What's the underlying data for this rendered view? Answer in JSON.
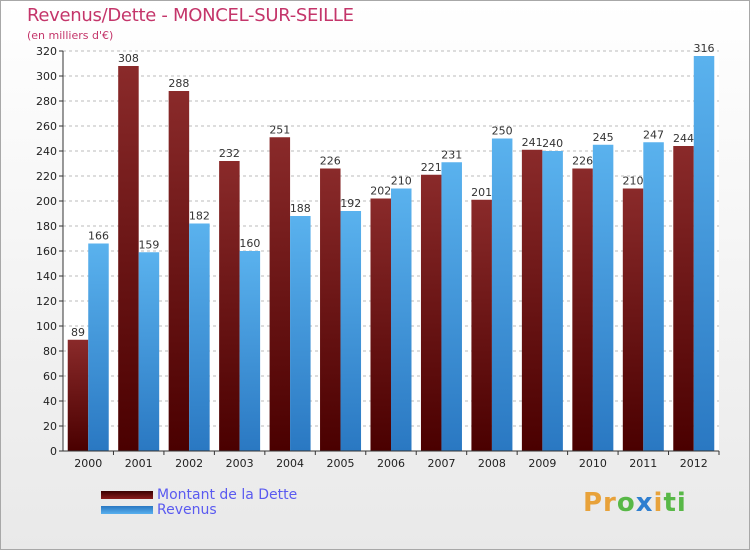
{
  "colors": {
    "title": "#c4356a",
    "debt_series": "#7a1818",
    "revenue_series": "#4aa0e2",
    "legend_text": "#5a5af0",
    "axis": "#333333",
    "grid": "#bbbbbb"
  },
  "logo": {
    "parts": [
      {
        "text": "Pr",
        "color": "#e8a23a"
      },
      {
        "text": "o",
        "color": "#58b847"
      },
      {
        "text": "x",
        "color": "#2f7fd0"
      },
      {
        "text": "i",
        "color": "#e8a23a"
      },
      {
        "text": "ti",
        "color": "#58b847"
      }
    ]
  },
  "chart_data": {
    "type": "bar",
    "title": "Revenus/Dette - MONCEL-SUR-SEILLE",
    "subtitle": "(en milliers d'€)",
    "categories": [
      "2000",
      "2001",
      "2002",
      "2003",
      "2004",
      "2005",
      "2006",
      "2007",
      "2008",
      "2009",
      "2010",
      "2011",
      "2012"
    ],
    "series": [
      {
        "name": "Montant de la Dette",
        "color": "#7a1818",
        "values": [
          89,
          308,
          288,
          232,
          251,
          226,
          202,
          221,
          201,
          241,
          226,
          210,
          244
        ]
      },
      {
        "name": "Revenus",
        "color": "#4aa0e2",
        "values": [
          166,
          159,
          182,
          160,
          188,
          192,
          210,
          231,
          250,
          240,
          245,
          247,
          316
        ]
      }
    ],
    "ylim": [
      0,
      320
    ],
    "ytick_step": 20,
    "grid": "horizontal dashed",
    "legend_position": "bottom-left",
    "data_labels": true
  }
}
